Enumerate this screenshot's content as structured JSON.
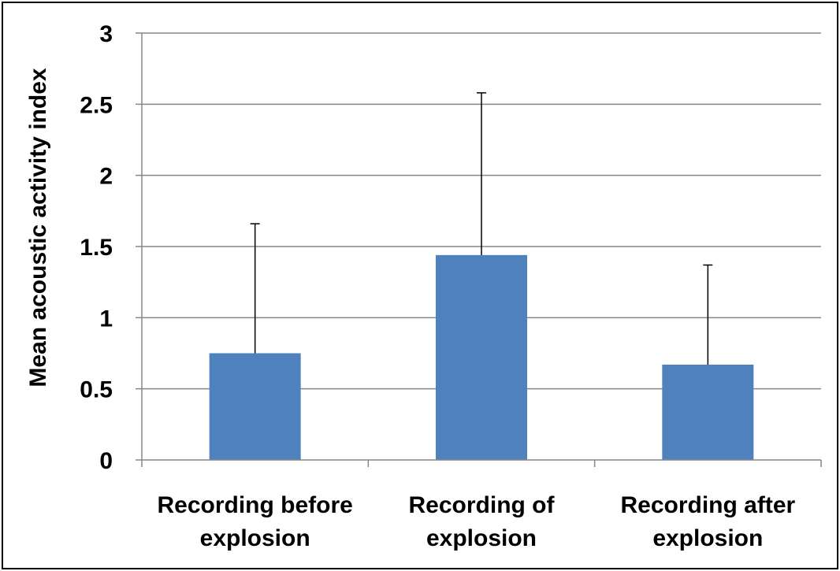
{
  "chart_data": {
    "type": "bar",
    "title": "",
    "xlabel": "",
    "ylabel": "Mean acoustic activity index",
    "categories": [
      [
        "Recording before",
        "explosion"
      ],
      [
        "Recording of",
        "explosion"
      ],
      [
        "Recording after",
        "explosion"
      ]
    ],
    "values": [
      0.75,
      1.44,
      0.67
    ],
    "error_upper": [
      1.66,
      2.58,
      1.37
    ],
    "ylim": [
      0,
      3
    ],
    "yticks": [
      0,
      0.5,
      1,
      1.5,
      2,
      2.5,
      3
    ],
    "ytick_labels": [
      "0",
      "0.5",
      "1",
      "1.5",
      "2",
      "2.5",
      "3"
    ],
    "grid": true,
    "bar_color": "#4F81BD",
    "grid_color": "#878787",
    "error_bar_color": "#000000"
  }
}
